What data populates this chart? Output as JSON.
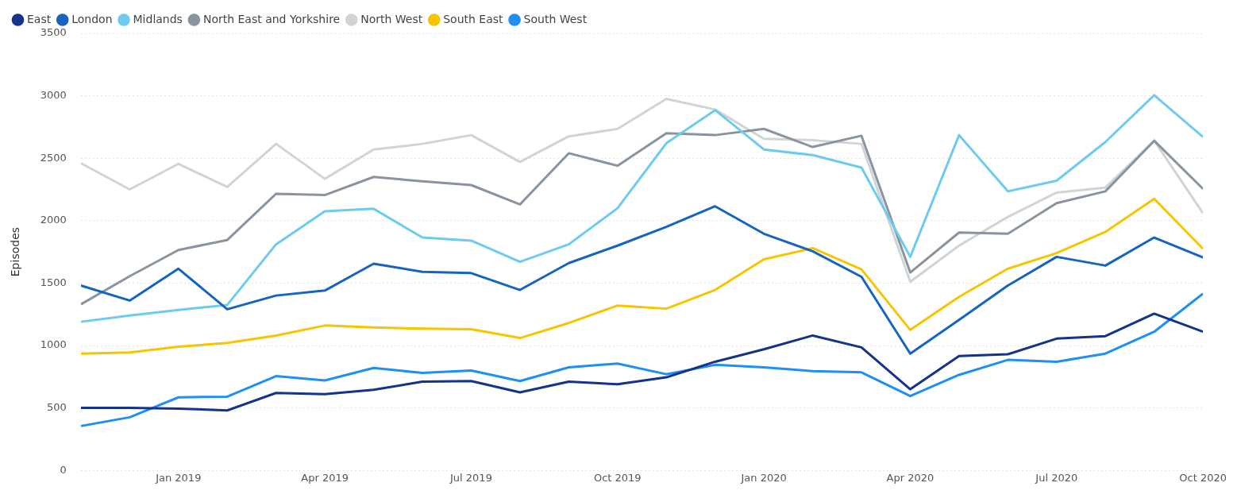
{
  "chart_data": {
    "type": "line",
    "ylabel": "Episodes",
    "x": [
      "2018-11",
      "2018-12",
      "2019-01",
      "2019-02",
      "2019-03",
      "2019-04",
      "2019-05",
      "2019-06",
      "2019-07",
      "2019-08",
      "2019-09",
      "2019-10",
      "2019-11",
      "2019-12",
      "2020-01",
      "2020-02",
      "2020-03",
      "2020-04",
      "2020-05",
      "2020-06",
      "2020-07",
      "2020-08",
      "2020-09",
      "2020-10"
    ],
    "xlim": [
      "2018-11",
      "2020-10"
    ],
    "xticks": [
      {
        "value": "2019-01",
        "label": "Jan 2019"
      },
      {
        "value": "2019-04",
        "label": "Apr 2019"
      },
      {
        "value": "2019-07",
        "label": "Jul 2019"
      },
      {
        "value": "2019-10",
        "label": "Oct 2019"
      },
      {
        "value": "2020-01",
        "label": "Jan 2020"
      },
      {
        "value": "2020-04",
        "label": "Apr 2020"
      },
      {
        "value": "2020-07",
        "label": "Jul 2020"
      },
      {
        "value": "2020-10",
        "label": "Oct 2020"
      }
    ],
    "ylim": [
      0,
      3500
    ],
    "yticks": [
      0,
      500,
      1000,
      1500,
      2000,
      2500,
      3000,
      3500
    ],
    "grid": "y",
    "legend": "top left",
    "marker": "none",
    "line_style": "solid",
    "series": [
      {
        "name": "East",
        "color": "#15338a",
        "values": [
          500,
          500,
          495,
          480,
          620,
          610,
          645,
          710,
          715,
          625,
          710,
          690,
          745,
          870,
          970,
          1080,
          985,
          650,
          915,
          930,
          1055,
          1075,
          1255,
          1110
        ]
      },
      {
        "name": "London",
        "color": "#1764c0",
        "values": [
          1480,
          1360,
          1615,
          1290,
          1400,
          1440,
          1655,
          1590,
          1580,
          1445,
          1660,
          1800,
          1950,
          2115,
          1895,
          1755,
          1550,
          935,
          1205,
          1480,
          1710,
          1640,
          1865,
          1705
        ]
      },
      {
        "name": "Midlands",
        "color": "#6ccbef",
        "values": [
          1190,
          1240,
          1285,
          1325,
          1810,
          2075,
          2095,
          1865,
          1840,
          1670,
          1810,
          2100,
          2620,
          2885,
          2570,
          2525,
          2425,
          1710,
          2685,
          2235,
          2320,
          2630,
          3005,
          2670
        ]
      },
      {
        "name": "North East and Yorkshire",
        "color": "#8994a0",
        "values": [
          1330,
          1555,
          1765,
          1845,
          2215,
          2205,
          2350,
          2315,
          2285,
          2130,
          2540,
          2440,
          2700,
          2685,
          2735,
          2590,
          2680,
          1585,
          1905,
          1895,
          2140,
          2235,
          2640,
          2255
        ]
      },
      {
        "name": "North West",
        "color": "#d2d4d4",
        "values": [
          2460,
          2250,
          2455,
          2270,
          2615,
          2335,
          2570,
          2615,
          2685,
          2470,
          2675,
          2735,
          2975,
          2890,
          2655,
          2645,
          2615,
          1510,
          1800,
          2030,
          2225,
          2265,
          2640,
          2060
        ]
      },
      {
        "name": "South East",
        "color": "#f6c500",
        "values": [
          935,
          945,
          990,
          1020,
          1080,
          1160,
          1145,
          1135,
          1130,
          1060,
          1180,
          1320,
          1295,
          1445,
          1690,
          1780,
          1610,
          1125,
          1390,
          1615,
          1740,
          1910,
          2175,
          1775
        ]
      },
      {
        "name": "South West",
        "color": "#1e8ff5",
        "values": [
          355,
          425,
          585,
          590,
          755,
          720,
          820,
          780,
          800,
          715,
          825,
          855,
          770,
          845,
          825,
          795,
          785,
          595,
          765,
          885,
          870,
          935,
          1110,
          1415
        ]
      }
    ]
  }
}
